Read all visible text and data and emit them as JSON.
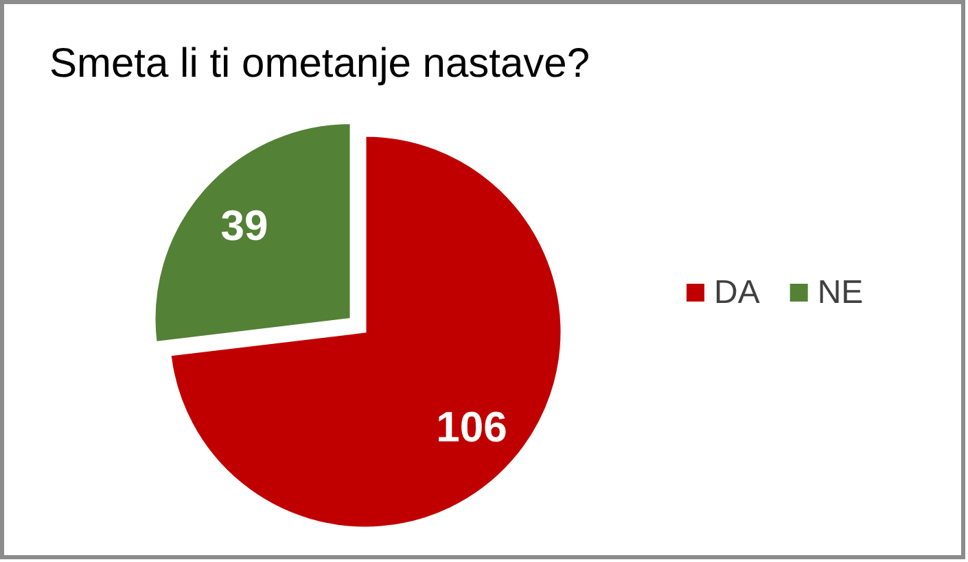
{
  "chart_data": {
    "type": "pie",
    "title": "Smeta li ti ometanje nastave?",
    "categories": [
      "DA",
      "NE"
    ],
    "values": [
      106,
      39
    ],
    "colors": [
      "#c00000",
      "#538135"
    ],
    "data_labels": true,
    "legend": "right"
  }
}
